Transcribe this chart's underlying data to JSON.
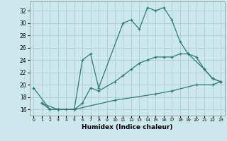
{
  "title": "",
  "xlabel": "Humidex (Indice chaleur)",
  "bg_color": "#cce8ec",
  "grid_color": "#b0d0d8",
  "line_color": "#2e7d6e",
  "xlim": [
    -0.5,
    23.5
  ],
  "ylim": [
    15.0,
    33.5
  ],
  "yticks": [
    16,
    18,
    20,
    22,
    24,
    26,
    28,
    30,
    32
  ],
  "xticks": [
    0,
    1,
    2,
    3,
    4,
    5,
    6,
    7,
    8,
    9,
    10,
    11,
    12,
    13,
    14,
    15,
    16,
    17,
    18,
    19,
    20,
    21,
    22,
    23
  ],
  "line1_x": [
    1,
    2,
    3,
    4,
    5,
    6,
    7,
    8,
    11,
    12,
    13,
    14,
    15,
    16,
    17,
    18,
    19,
    21,
    22,
    23
  ],
  "line1_y": [
    17,
    16,
    16,
    16,
    16,
    24,
    25,
    19.5,
    30,
    30.5,
    29,
    32.5,
    32,
    32.5,
    30.5,
    27,
    25,
    22.5,
    21,
    20.5
  ],
  "line2_x": [
    1,
    3,
    5,
    6,
    7,
    8,
    10,
    11,
    12,
    13,
    14,
    15,
    16,
    17,
    18,
    19,
    20,
    21,
    22,
    23
  ],
  "line2_y": [
    17,
    16,
    16,
    17,
    19.5,
    19,
    20.5,
    21.5,
    22.5,
    23.5,
    24,
    24.5,
    24.5,
    24.5,
    25,
    25,
    24.5,
    22.5,
    21,
    20.5
  ],
  "line3_x": [
    0,
    2,
    3,
    5,
    10,
    15,
    17,
    20,
    22,
    23
  ],
  "line3_y": [
    19.5,
    16,
    16,
    16,
    17.5,
    18.5,
    19,
    20,
    20,
    20.5
  ]
}
